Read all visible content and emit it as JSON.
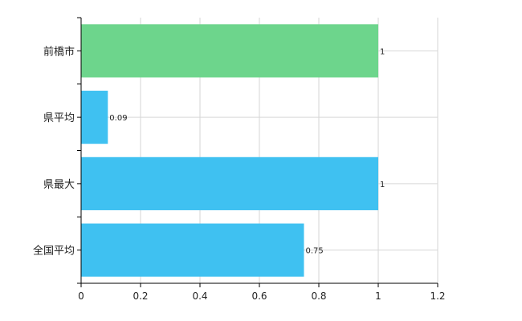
{
  "chart_data": {
    "type": "bar",
    "orientation": "horizontal",
    "categories": [
      "前橋市",
      "県平均",
      "県最大",
      "全国平均"
    ],
    "values": [
      1,
      0.09,
      1,
      0.75
    ],
    "data_labels": [
      "1",
      "0.09",
      "1",
      "0.75"
    ],
    "bar_colors": [
      "#6dd58c",
      "#3fc1f1",
      "#3fc1f1",
      "#3fc1f1"
    ],
    "xlim": [
      0,
      1.2
    ],
    "x_ticks": [
      0,
      0.2,
      0.4,
      0.6,
      0.8,
      1,
      1.2
    ],
    "x_tick_labels": [
      "0",
      "0.2",
      "0.4",
      "0.6",
      "0.8",
      "1",
      "1.2"
    ],
    "grid": true,
    "title": "",
    "xlabel": "",
    "ylabel": ""
  }
}
